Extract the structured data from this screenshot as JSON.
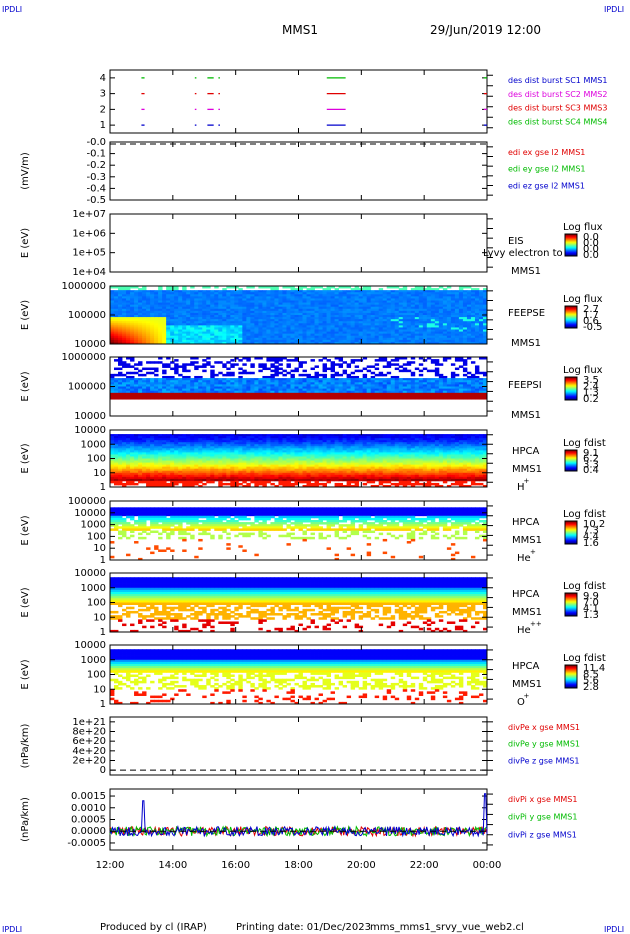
{
  "header": {
    "corner_tl": "IPDLI",
    "corner_tr": "IPDLI",
    "mission": "MMS1",
    "datetime": "29/Jun/2019 12:00"
  },
  "footer": {
    "corner_bl": "IPDLI",
    "corner_br": "IPDLI",
    "produced": "Produced by cl (IRAP)",
    "printing": "Printing date: 01/Dec/2023",
    "file": "mms_mms1_srvy_vue_web2.cl"
  },
  "colors": {
    "red": "#e00000",
    "green": "#00bb00",
    "blue": "#0000cc",
    "magenta": "#dd00dd"
  },
  "chart_data": [
    {
      "id": "burst",
      "type": "line",
      "ylim": [
        0.5,
        4.5
      ],
      "yticks": [
        "1",
        "2",
        "3",
        "4"
      ],
      "ytick_values": [
        1,
        2,
        3,
        4
      ],
      "legend": [
        {
          "text": "des dist burst SC1 MMS1",
          "color": "#0000cc"
        },
        {
          "text": "des dist burst SC2 MMS2",
          "color": "#dd00dd"
        },
        {
          "text": "des dist burst SC3 MMS3",
          "color": "#e00000"
        },
        {
          "text": "des dist burst SC4 MMS4",
          "color": "#00bb00"
        }
      ],
      "intervals_hours": [
        [
          13.0,
          13.1
        ],
        [
          14.7,
          14.75
        ],
        [
          15.1,
          15.3
        ],
        [
          15.45,
          15.5
        ],
        [
          18.9,
          19.5
        ],
        [
          23.9,
          24.0
        ]
      ]
    },
    {
      "id": "edi",
      "type": "line",
      "ylabel": "(mV/m)",
      "ylim": [
        -0.5,
        0.0
      ],
      "yticks": [
        "-0.0",
        "-0.1",
        "-0.2",
        "-0.3",
        "-0.4",
        "-0.5"
      ],
      "ytick_values": [
        0.0,
        -0.1,
        -0.2,
        -0.3,
        -0.4,
        -0.5
      ],
      "legend": [
        {
          "text": "edi ex gse l2 MMS1",
          "color": "#e00000"
        },
        {
          "text": "edi ey gse l2 MMS1",
          "color": "#00bb00"
        },
        {
          "text": "edi ez gse l2 MMS1",
          "color": "#0000cc"
        }
      ],
      "values": 0.0
    },
    {
      "id": "eis",
      "type": "heatmap",
      "ylabel": "E (eV)",
      "yticks": [
        "1e+07",
        "1e+06",
        "1e+05",
        "1e+04"
      ],
      "labels": [
        "EIS",
        "MMS1"
      ],
      "overlay": "Lyvy electron to",
      "colorbar_title": "Log flux",
      "colorbar_ticks": [
        "0.0",
        "0.0",
        "0.0",
        "0.0"
      ]
    },
    {
      "id": "feepse",
      "type": "heatmap",
      "ylabel": "E (eV)",
      "yticks": [
        "1000000",
        "100000",
        "10000"
      ],
      "labels": [
        "FEEPSE",
        "MMS1"
      ],
      "colorbar_title": "Log flux",
      "colorbar_ticks": [
        "2.7",
        "1.7",
        "0.6",
        "-0.5"
      ]
    },
    {
      "id": "feepsi",
      "type": "heatmap",
      "ylabel": "E (eV)",
      "yticks": [
        "1000000",
        "100000",
        "10000"
      ],
      "labels": [
        "FEEPSI",
        "MMS1"
      ],
      "colorbar_title": "Log flux",
      "colorbar_ticks": [
        "3.5",
        "2.4",
        "1.3",
        "0.2"
      ]
    },
    {
      "id": "hpca_h",
      "type": "heatmap",
      "ylabel": "E (eV)",
      "yticks": [
        "10000",
        "1000",
        "100",
        "10",
        "1"
      ],
      "labels": [
        "HPCA",
        "MMS1",
        "H",
        "+"
      ],
      "colorbar_title": "Log fdist",
      "colorbar_ticks": [
        "9.1",
        "6.2",
        "3.3",
        "0.4"
      ]
    },
    {
      "id": "hpca_he",
      "type": "heatmap",
      "ylabel": "E (eV)",
      "yticks": [
        "100000",
        "10000",
        "1000",
        "100",
        "10",
        "1"
      ],
      "labels": [
        "HPCA",
        "MMS1",
        "He",
        "+"
      ],
      "colorbar_title": "Log fdist",
      "colorbar_ticks": [
        "10.2",
        "7.3",
        "4.4",
        "1.6"
      ]
    },
    {
      "id": "hpca_hepp",
      "type": "heatmap",
      "ylabel": "E (eV)",
      "yticks": [
        "10000",
        "1000",
        "100",
        "10",
        "1"
      ],
      "labels": [
        "HPCA",
        "MMS1",
        "He",
        "++"
      ],
      "colorbar_title": "Log fdist",
      "colorbar_ticks": [
        "9.9",
        "7.0",
        "4.1",
        "1.3"
      ]
    },
    {
      "id": "hpca_o",
      "type": "heatmap",
      "ylabel": "E (eV)",
      "yticks": [
        "10000",
        "1000",
        "100",
        "10",
        "1"
      ],
      "labels": [
        "HPCA",
        "MMS1",
        "O",
        "+"
      ],
      "colorbar_title": "Log fdist",
      "colorbar_ticks": [
        "11.4",
        "8.5",
        "5.6",
        "2.8"
      ]
    },
    {
      "id": "divpe",
      "type": "line",
      "ylabel": "(nPa/km)",
      "ylim": [
        -1e+20,
        1.1e+21
      ],
      "yticks": [
        "1e+21",
        "8e+20",
        "6e+20",
        "4e+20",
        "2e+20",
        "0"
      ],
      "ytick_values": [
        1e+21,
        8e+20,
        6e+20,
        4e+20,
        2e+20,
        0
      ],
      "legend": [
        {
          "text": "divPe x gse MMS1",
          "color": "#e00000"
        },
        {
          "text": "divPe y gse MMS1",
          "color": "#00bb00"
        },
        {
          "text": "divPe z gse MMS1",
          "color": "#0000cc"
        }
      ],
      "values": 0
    },
    {
      "id": "divpi",
      "type": "line",
      "ylabel": "(nPa/km)",
      "ylim": [
        -0.0008,
        0.0018
      ],
      "yticks": [
        "0.0015",
        "0.0010",
        "0.0005",
        "0.0000",
        "-0.0005"
      ],
      "ytick_values": [
        0.0015,
        0.001,
        0.0005,
        0.0,
        -0.0005
      ],
      "legend": [
        {
          "text": "divPi x gse MMS1",
          "color": "#e00000"
        },
        {
          "text": "divPi y gse MMS1",
          "color": "#00bb00"
        },
        {
          "text": "divPi z gse MMS1",
          "color": "#0000cc"
        }
      ],
      "spikes": [
        {
          "t": 13.05,
          "v": 0.0013
        },
        {
          "t": 23.95,
          "v": 0.0016
        }
      ]
    }
  ],
  "xaxis": {
    "ticks": [
      "12:00",
      "14:00",
      "16:00",
      "18:00",
      "20:00",
      "22:00",
      "00:00"
    ],
    "tick_hours": [
      12,
      14,
      16,
      18,
      20,
      22,
      24
    ]
  }
}
